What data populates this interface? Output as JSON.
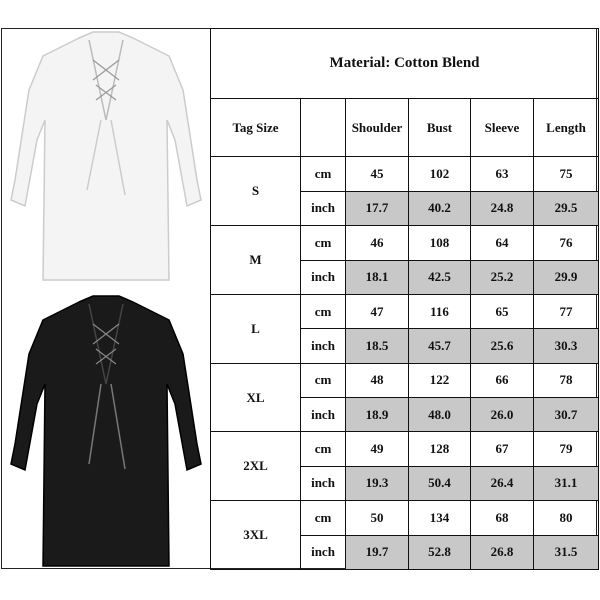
{
  "title": "Material: Cotton Blend",
  "headers": {
    "tag_size": "Tag Size",
    "unit": "",
    "shoulder": "Shoulder",
    "bust": "Bust",
    "sleeve": "Sleeve",
    "length": "Length"
  },
  "units": {
    "cm": "cm",
    "inch": "inch"
  },
  "sizes": [
    {
      "size": "S",
      "cm": [
        "45",
        "102",
        "63",
        "75"
      ],
      "inch": [
        "17.7",
        "40.2",
        "24.8",
        "29.5"
      ]
    },
    {
      "size": "M",
      "cm": [
        "46",
        "108",
        "64",
        "76"
      ],
      "inch": [
        "18.1",
        "42.5",
        "25.2",
        "29.9"
      ]
    },
    {
      "size": "L",
      "cm": [
        "47",
        "116",
        "65",
        "77"
      ],
      "inch": [
        "18.5",
        "45.7",
        "25.6",
        "30.3"
      ]
    },
    {
      "size": "XL",
      "cm": [
        "48",
        "122",
        "66",
        "78"
      ],
      "inch": [
        "18.9",
        "48.0",
        "26.0",
        "30.7"
      ]
    },
    {
      "size": "2XL",
      "cm": [
        "49",
        "128",
        "67",
        "79"
      ],
      "inch": [
        "19.3",
        "50.4",
        "26.4",
        "31.1"
      ]
    },
    {
      "size": "3XL",
      "cm": [
        "50",
        "134",
        "68",
        "80"
      ],
      "inch": [
        "19.7",
        "52.8",
        "26.8",
        "31.5"
      ]
    }
  ],
  "colors": {
    "inch_row_bg": "#c8c8c8",
    "shirt_white": "#f4f4f4",
    "shirt_black": "#1a1a1a"
  }
}
